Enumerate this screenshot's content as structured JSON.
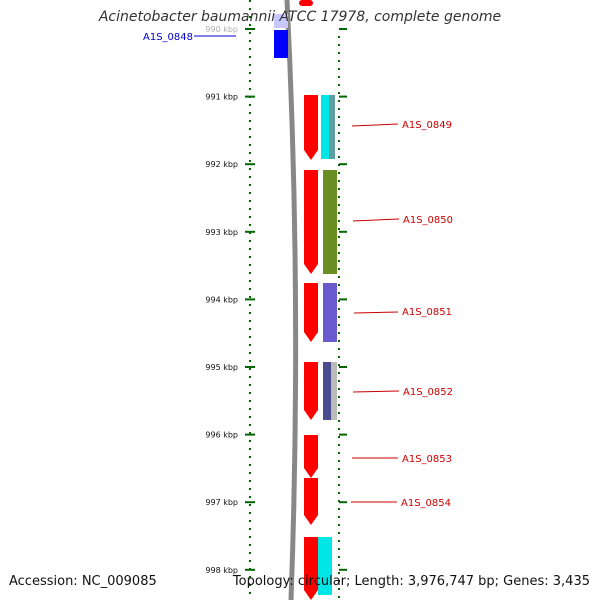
{
  "header": {
    "title": "Acinetobacter baumannii ATCC 17978, complete genome"
  },
  "footer": {
    "accession": "Accession: NC_009085",
    "summary": "Topology: circular; Length: 3,976,747 bp; Genes: 3,435"
  },
  "scale": {
    "ticks": [
      {
        "label": "990 kbp",
        "kbp": 990
      },
      {
        "label": "991 kbp",
        "kbp": 991
      },
      {
        "label": "992 kbp",
        "kbp": 992
      },
      {
        "label": "993 kbp",
        "kbp": 993
      },
      {
        "label": "994 kbp",
        "kbp": 994
      },
      {
        "label": "995 kbp",
        "kbp": 995
      },
      {
        "label": "996 kbp",
        "kbp": 996
      },
      {
        "label": "997 kbp",
        "kbp": 997
      },
      {
        "label": "998 kbp",
        "kbp": 998
      }
    ]
  },
  "genes": {
    "labeled": [
      {
        "label": "A1S_0848",
        "color": "#0000cc"
      },
      {
        "label": "A1S_0849",
        "color": "#cc0000"
      },
      {
        "label": "A1S_0850",
        "color": "#cc0000"
      },
      {
        "label": "A1S_0851",
        "color": "#cc0000"
      },
      {
        "label": "A1S_0852",
        "color": "#cc0000"
      },
      {
        "label": "A1S_0853",
        "color": "#cc0000"
      },
      {
        "label": "A1S_0854",
        "color": "#cc0000"
      }
    ]
  },
  "colors": {
    "cds_forward": "#ff0000",
    "cds_reverse": "#0000ff",
    "backbone": "#888888",
    "tick": "#006600",
    "cog_cyan": "#00e5e5",
    "cog_olive": "#6b8e23",
    "cog_purple": "#6a5acd",
    "cog_slate": "#4b4b8f"
  }
}
